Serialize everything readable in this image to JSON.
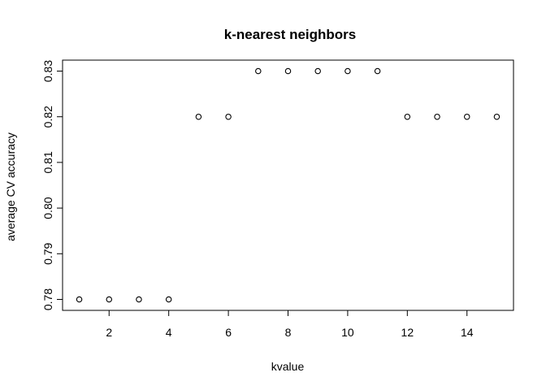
{
  "chart_data": {
    "type": "scatter",
    "title": "k-nearest neighbors",
    "xlabel": "kvalue",
    "ylabel": "average CV accuracy",
    "x": [
      1,
      2,
      3,
      4,
      5,
      6,
      7,
      8,
      9,
      10,
      11,
      12,
      13,
      14,
      15
    ],
    "y": [
      0.78,
      0.78,
      0.78,
      0.78,
      0.82,
      0.82,
      0.83,
      0.83,
      0.83,
      0.83,
      0.83,
      0.82,
      0.82,
      0.82,
      0.82
    ],
    "xlim": [
      0.44,
      15.56
    ],
    "ylim": [
      0.7776,
      0.8324
    ],
    "xticks": [
      2,
      4,
      6,
      8,
      10,
      12,
      14
    ],
    "xtick_labels": [
      "2",
      "4",
      "6",
      "8",
      "10",
      "12",
      "14"
    ],
    "yticks": [
      0.78,
      0.79,
      0.8,
      0.81,
      0.82,
      0.83
    ],
    "ytick_labels": [
      "0.78",
      "0.79",
      "0.80",
      "0.81",
      "0.82",
      "0.83"
    ],
    "grid": false,
    "marker": "open-circle",
    "colors": {
      "points": "#000000",
      "axis": "#000000",
      "background": "#ffffff"
    }
  }
}
